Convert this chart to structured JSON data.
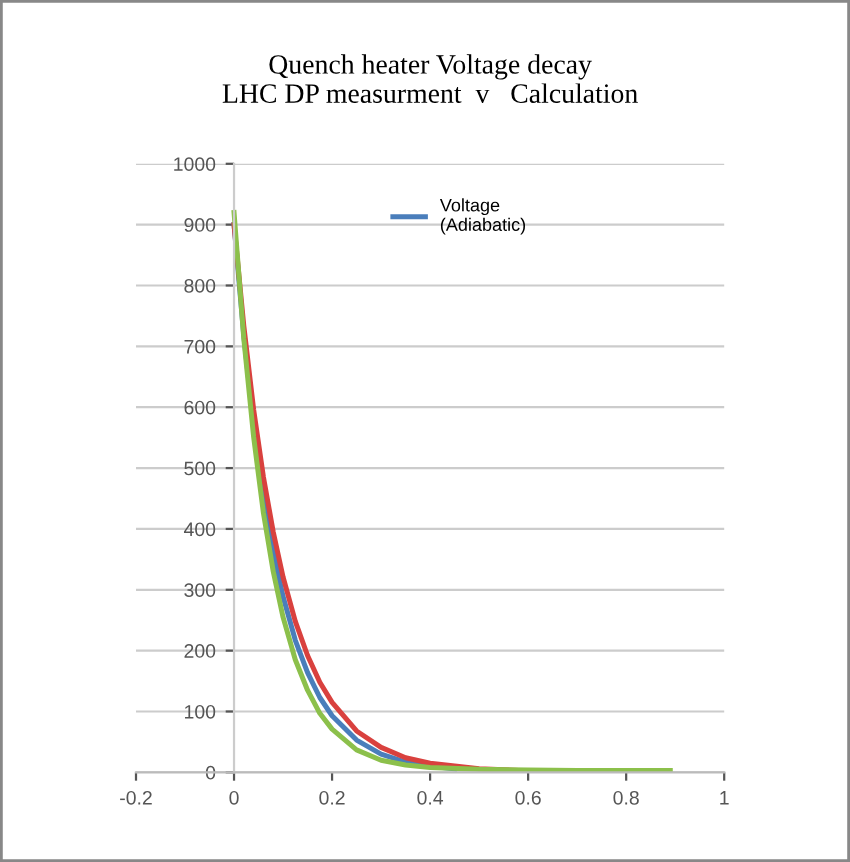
{
  "chart_data": {
    "type": "line",
    "title": "Quench heater Voltage decay\nLHC DP measurment  v   Calculation",
    "series": [
      {
        "name": "Voltage\n(Adiabatic)",
        "color": "#4a7ebb",
        "x": [
          0,
          0.02,
          0.04,
          0.06,
          0.08,
          0.1,
          0.125,
          0.15,
          0.175,
          0.2,
          0.25,
          0.3,
          0.35,
          0.4,
          0.45
        ],
        "values": [
          900,
          717,
          571,
          455,
          363,
          289,
          217,
          164,
          123,
          93,
          53,
          30,
          17,
          10,
          6
        ]
      },
      {
        "color": "#d9413e",
        "x": [
          0,
          0.02,
          0.04,
          0.06,
          0.08,
          0.1,
          0.125,
          0.15,
          0.175,
          0.2,
          0.25,
          0.3,
          0.35,
          0.4,
          0.5,
          0.61
        ],
        "values": [
          900,
          733,
          596,
          485,
          395,
          321,
          248,
          192,
          148,
          115,
          68,
          41,
          24,
          15,
          6,
          2
        ]
      },
      {
        "color": "#8cc04b",
        "x": [
          0,
          0.02,
          0.04,
          0.06,
          0.08,
          0.1,
          0.125,
          0.15,
          0.175,
          0.2,
          0.25,
          0.3,
          0.35,
          0.4,
          0.5,
          0.6,
          0.7,
          0.8,
          0.89
        ],
        "values": [
          920,
          712,
          551,
          426,
          330,
          255,
          185,
          135,
          97,
          71,
          37,
          20,
          12,
          8,
          5,
          4,
          3,
          3,
          3
        ]
      }
    ],
    "xlim": [
      -0.2,
      1
    ],
    "xticks": [
      -0.2,
      0,
      0.2,
      0.4,
      0.6,
      0.8,
      1
    ],
    "ylim": [
      0,
      1000
    ],
    "yticks": [
      0,
      100,
      200,
      300,
      400,
      500,
      600,
      700,
      800,
      900,
      1000
    ],
    "grid": "y",
    "legend": "top"
  }
}
